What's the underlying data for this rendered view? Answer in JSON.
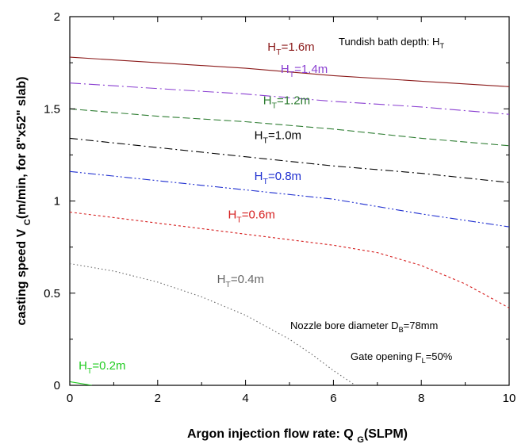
{
  "chart_data": {
    "type": "line",
    "xlabel": {
      "main": "Argon injection flow rate: Q",
      "sub": "G",
      "unit": "(SLPM)"
    },
    "ylabel": {
      "main": "casting speed V",
      "sub": "C",
      "unit": "(m/min, for 8\"x52\" slab)"
    },
    "xlim": [
      0,
      10
    ],
    "ylim": [
      0,
      2
    ],
    "xticks": [
      0,
      2,
      4,
      6,
      8,
      10
    ],
    "yticks": [
      0,
      0.5,
      1,
      1.5,
      2
    ],
    "grid": false,
    "annotations": {
      "depth_note": {
        "text": "Tundish bath depth: H",
        "sub": "T"
      },
      "nozzle_note": {
        "text": "Nozzle bore diameter D",
        "sub": "B",
        "value": "=78mm"
      },
      "gate_note": {
        "text": "Gate opening F",
        "sub": "L",
        "value": "=50%"
      }
    },
    "series": [
      {
        "label": "H",
        "sub": "T",
        "value": "=1.6m",
        "color": "#8b1a1a",
        "dash": "none",
        "x": [
          0,
          2,
          4,
          6,
          8,
          10
        ],
        "y": [
          1.78,
          1.75,
          1.72,
          1.68,
          1.65,
          1.62
        ],
        "label_at": [
          4.5,
          1.815
        ]
      },
      {
        "label": "H",
        "sub": "T",
        "value": "=1.4m",
        "color": "#8a3fd1",
        "dash": "14,4,2,4",
        "x": [
          0,
          2,
          4,
          6,
          8,
          10
        ],
        "y": [
          1.64,
          1.61,
          1.58,
          1.54,
          1.51,
          1.47
        ],
        "label_at": [
          4.8,
          1.695
        ]
      },
      {
        "label": "H",
        "sub": "T",
        "value": "=1.2m",
        "color": "#2e7d32",
        "dash": "9,4",
        "x": [
          0,
          2,
          4,
          6,
          8,
          10
        ],
        "y": [
          1.5,
          1.46,
          1.43,
          1.39,
          1.34,
          1.3
        ],
        "label_at": [
          4.4,
          1.525
        ]
      },
      {
        "label": "H",
        "sub": "T",
        "value": "=1.0m",
        "color": "#000000",
        "dash": "10,4,2,4",
        "x": [
          0,
          2,
          4,
          6,
          8,
          10
        ],
        "y": [
          1.34,
          1.29,
          1.24,
          1.19,
          1.15,
          1.1
        ],
        "label_at": [
          4.2,
          1.335
        ]
      },
      {
        "label": "H",
        "sub": "T",
        "value": "=0.8m",
        "color": "#1f2fd0",
        "dash": "10,3,2,3,2,3",
        "x": [
          0,
          2,
          4,
          6,
          8,
          10
        ],
        "y": [
          1.16,
          1.11,
          1.06,
          1.01,
          0.93,
          0.86
        ],
        "label_at": [
          4.2,
          1.115
        ]
      },
      {
        "label": "H",
        "sub": "T",
        "value": "=0.6m",
        "color": "#d62020",
        "dash": "3,3",
        "x": [
          0,
          2,
          4,
          6,
          7,
          8,
          9,
          10
        ],
        "y": [
          0.94,
          0.88,
          0.82,
          0.76,
          0.72,
          0.65,
          0.55,
          0.42
        ],
        "label_at": [
          3.6,
          0.905
        ]
      },
      {
        "label": "H",
        "sub": "T",
        "value": "=0.4m",
        "color": "#666666",
        "dash": "1.5,3",
        "x": [
          0,
          1,
          2,
          3,
          4,
          5,
          5.5,
          6,
          6.5
        ],
        "y": [
          0.66,
          0.62,
          0.56,
          0.48,
          0.38,
          0.25,
          0.17,
          0.08,
          0.0
        ],
        "label_at": [
          3.35,
          0.555
        ]
      },
      {
        "label": "H",
        "sub": "T",
        "value": "=0.2m",
        "color": "#22cc22",
        "dash": "none",
        "x": [
          0,
          0.25,
          0.5
        ],
        "y": [
          0.02,
          0.01,
          0.0
        ],
        "label_at": [
          0.2,
          0.085
        ]
      }
    ]
  }
}
